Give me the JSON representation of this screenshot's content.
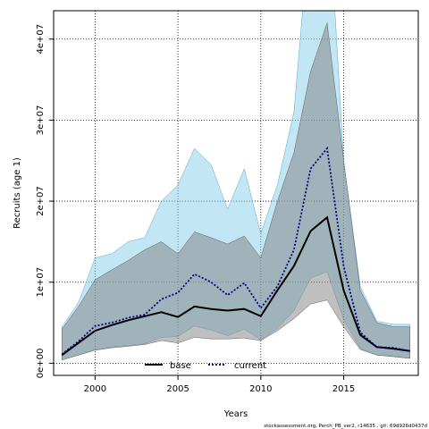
{
  "chart_data": {
    "type": "line",
    "xlabel": "Years",
    "ylabel": "Recruits (age 1)",
    "xlim": [
      1997.5,
      2019.5
    ],
    "ylim": [
      -1500000,
      43500000
    ],
    "xticks": [
      2000,
      2005,
      2010,
      2015
    ],
    "xtick_labels": [
      "2000",
      "2005",
      "2010",
      "2015"
    ],
    "yticks": [
      0,
      10000000,
      20000000,
      30000000,
      40000000
    ],
    "ytick_labels": [
      "0e+00",
      "1e+07",
      "2e+07",
      "3e+07",
      "4e+07"
    ],
    "grid": true,
    "legend_position": "bottom-left",
    "x": [
      1998,
      1999,
      2000,
      2001,
      2002,
      2003,
      2004,
      2005,
      2006,
      2007,
      2008,
      2009,
      2010,
      2011,
      2012,
      2013,
      2014,
      2015,
      2016,
      2017,
      2018,
      2019
    ],
    "series": [
      {
        "name": "base",
        "color": "#000000",
        "line_style": "solid",
        "band_color": "#808080",
        "values": [
          1000000,
          2500000,
          4000000,
          4700000,
          5300000,
          5800000,
          6300000,
          5700000,
          7000000,
          6700000,
          6500000,
          6700000,
          5800000,
          9000000,
          12000000,
          16300000,
          18000000,
          9000000,
          3500000,
          2000000,
          1800000,
          1500000
        ],
        "lower": [
          400000,
          1000000,
          1600000,
          1900000,
          2100000,
          2300000,
          2800000,
          2500000,
          3200000,
          3000000,
          3000000,
          3100000,
          2800000,
          4000000,
          5500000,
          7300000,
          7800000,
          4500000,
          1700000,
          1000000,
          800000,
          600000
        ],
        "upper": [
          4200000,
          7000000,
          10300000,
          11500000,
          12700000,
          14000000,
          15000000,
          13500000,
          16200000,
          15500000,
          14700000,
          15700000,
          13000000,
          20000000,
          26000000,
          36000000,
          42000000,
          25000000,
          9000000,
          5000000,
          4500000,
          4500000
        ]
      },
      {
        "name": "current",
        "color": "#000080",
        "line_style": "dotted",
        "band_color": "#87CEEB",
        "values": [
          1100000,
          2700000,
          4600000,
          5000000,
          5600000,
          6000000,
          7900000,
          8700000,
          11000000,
          10000000,
          8400000,
          9900000,
          6800000,
          9500000,
          14000000,
          24000000,
          26500000,
          12000000,
          3800000,
          2000000,
          1900000,
          1500000
        ],
        "lower": [
          400000,
          1000000,
          1700000,
          2000000,
          2200000,
          2400000,
          3200000,
          3300000,
          4600000,
          4100000,
          3400000,
          4200000,
          2900000,
          4300000,
          6500000,
          10500000,
          11300000,
          5400000,
          1800000,
          1000000,
          900000,
          600000
        ],
        "upper": [
          4500000,
          7500000,
          13000000,
          13500000,
          15000000,
          15500000,
          20000000,
          22000000,
          26500000,
          24500000,
          19000000,
          24000000,
          16000000,
          22000000,
          31000000,
          55000000,
          60000000,
          25000000,
          9500000,
          5200000,
          4800000,
          4800000
        ]
      }
    ]
  },
  "footer": {
    "text": "stockassessment.org, Perch_PB_ver2, r14635 , git: 69d926d0437d"
  }
}
